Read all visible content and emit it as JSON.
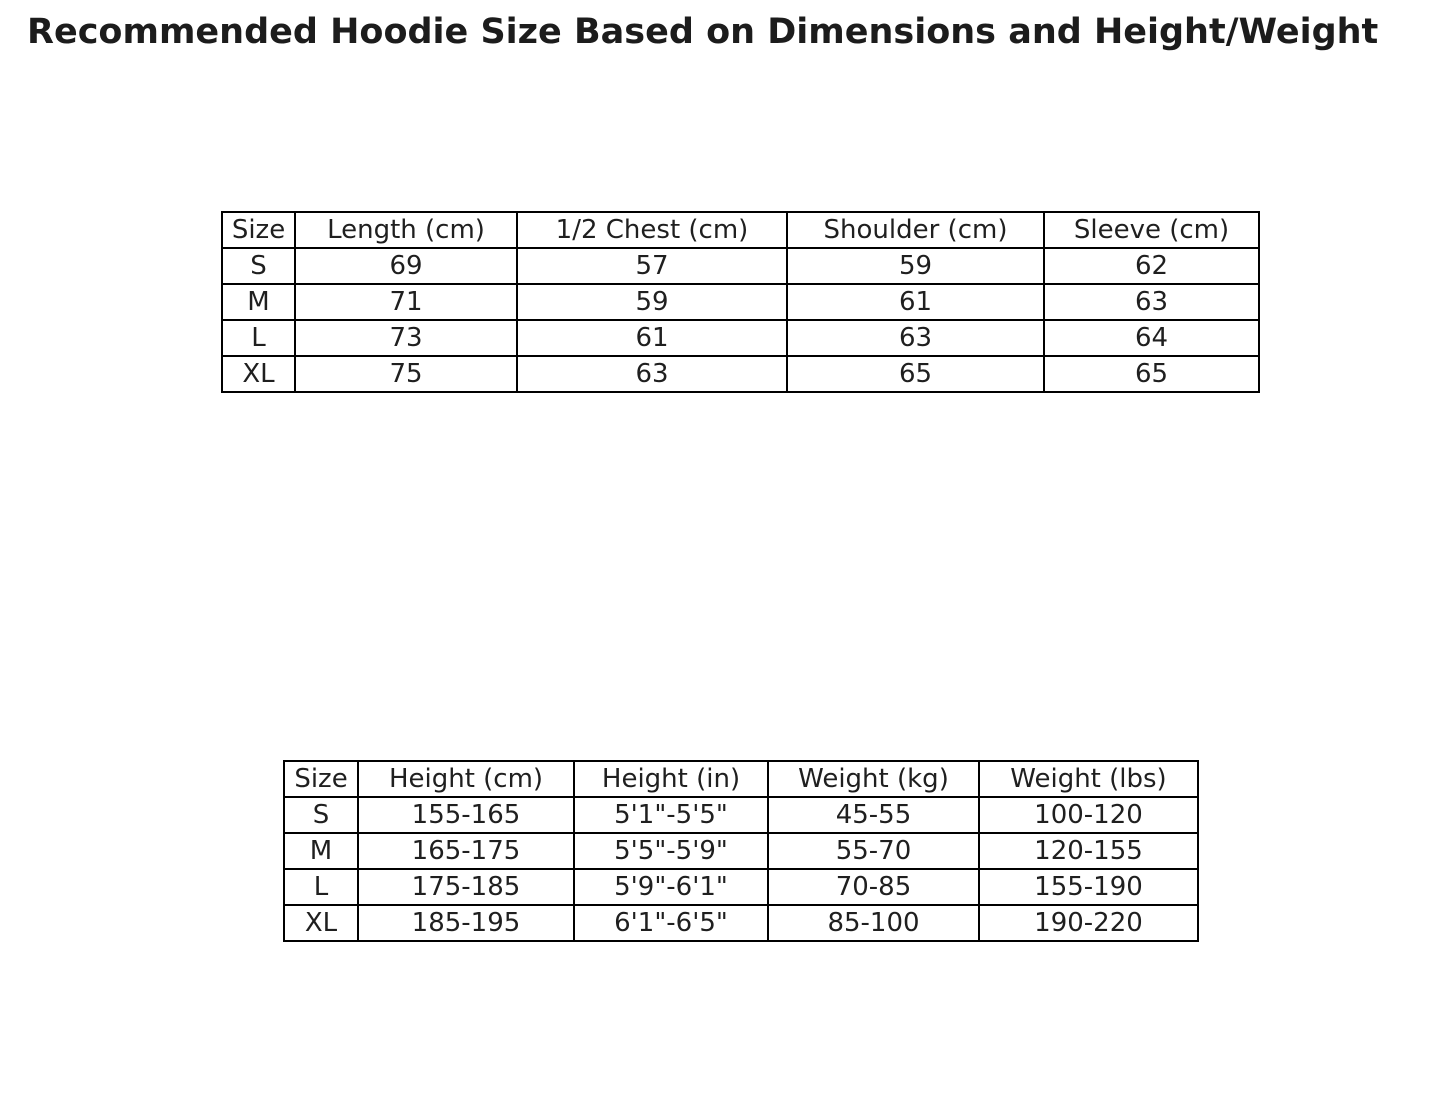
{
  "page": {
    "title": "Recommended Hoodie Size Based on Dimensions and Height/Weight",
    "background_color": "#ffffff",
    "text_color": "#1f1f1f",
    "border_color": "#000000"
  },
  "dimensions_table": {
    "headers": [
      "Size",
      "Length (cm)",
      "1/2 Chest (cm)",
      "Shoulder (cm)",
      "Sleeve (cm)"
    ],
    "rows": [
      [
        "S",
        "69",
        "57",
        "59",
        "62"
      ],
      [
        "M",
        "71",
        "59",
        "61",
        "63"
      ],
      [
        "L",
        "73",
        "61",
        "63",
        "64"
      ],
      [
        "XL",
        "75",
        "63",
        "65",
        "65"
      ]
    ]
  },
  "height_weight_table": {
    "headers": [
      "Size",
      "Height (cm)",
      "Height (in)",
      "Weight (kg)",
      "Weight (lbs)"
    ],
    "rows": [
      [
        "S",
        "155-165",
        "5'1\"-5'5\"",
        "45-55",
        "100-120"
      ],
      [
        "M",
        "165-175",
        "5'5\"-5'9\"",
        "55-70",
        "120-155"
      ],
      [
        "L",
        "175-185",
        "5'9\"-6'1\"",
        "70-85",
        "155-190"
      ],
      [
        "XL",
        "185-195",
        "6'1\"-6'5\"",
        "85-100",
        "190-220"
      ]
    ]
  },
  "chart_data": [
    {
      "type": "table",
      "title": "Hoodie dimensions by size",
      "columns": [
        "Size",
        "Length (cm)",
        "1/2 Chest (cm)",
        "Shoulder (cm)",
        "Sleeve (cm)"
      ],
      "rows": [
        {
          "Size": "S",
          "Length (cm)": 69,
          "1/2 Chest (cm)": 57,
          "Shoulder (cm)": 59,
          "Sleeve (cm)": 62
        },
        {
          "Size": "M",
          "Length (cm)": 71,
          "1/2 Chest (cm)": 59,
          "Shoulder (cm)": 61,
          "Sleeve (cm)": 63
        },
        {
          "Size": "L",
          "Length (cm)": 73,
          "1/2 Chest (cm)": 61,
          "Shoulder (cm)": 63,
          "Sleeve (cm)": 64
        },
        {
          "Size": "XL",
          "Length (cm)": 75,
          "1/2 Chest (cm)": 63,
          "Shoulder (cm)": 65,
          "Sleeve (cm)": 65
        }
      ]
    },
    {
      "type": "table",
      "title": "Recommended size by height and weight",
      "columns": [
        "Size",
        "Height (cm)",
        "Height (in)",
        "Weight (kg)",
        "Weight (lbs)"
      ],
      "rows": [
        {
          "Size": "S",
          "Height (cm)": "155-165",
          "Height (in)": "5'1\"-5'5\"",
          "Weight (kg)": "45-55",
          "Weight (lbs)": "100-120"
        },
        {
          "Size": "M",
          "Height (cm)": "165-175",
          "Height (in)": "5'5\"-5'9\"",
          "Weight (kg)": "55-70",
          "Weight (lbs)": "120-155"
        },
        {
          "Size": "L",
          "Height (cm)": "175-185",
          "Height (in)": "5'9\"-6'1\"",
          "Weight (kg)": "70-85",
          "Weight (lbs)": "155-190"
        },
        {
          "Size": "XL",
          "Height (cm)": "185-195",
          "Height (in)": "6'1\"-6'5\"",
          "Weight (kg)": "85-100",
          "Weight (lbs)": "190-220"
        }
      ]
    }
  ]
}
